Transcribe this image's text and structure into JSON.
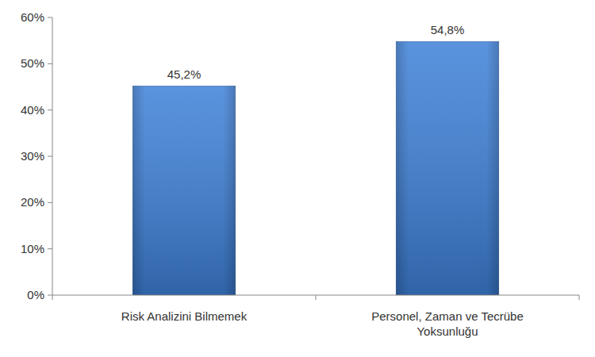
{
  "chart_data": {
    "type": "bar",
    "categories": [
      "Risk Analizini Bilmemek",
      "Personel, Zaman ve Tecrübe Yoksunluğu"
    ],
    "values": [
      45.2,
      54.8
    ],
    "value_labels": [
      "45,2%",
      "54,8%"
    ],
    "color": "#3d80d8",
    "ylim": [
      0,
      60
    ],
    "yticks": [
      {
        "value": 0,
        "label": "0%"
      },
      {
        "value": 10,
        "label": "10%"
      },
      {
        "value": 20,
        "label": "20%"
      },
      {
        "value": 30,
        "label": "30%"
      },
      {
        "value": 40,
        "label": "40%"
      },
      {
        "value": 50,
        "label": "50%"
      },
      {
        "value": 60,
        "label": "60%"
      }
    ],
    "grid": false,
    "data_labels": true
  }
}
